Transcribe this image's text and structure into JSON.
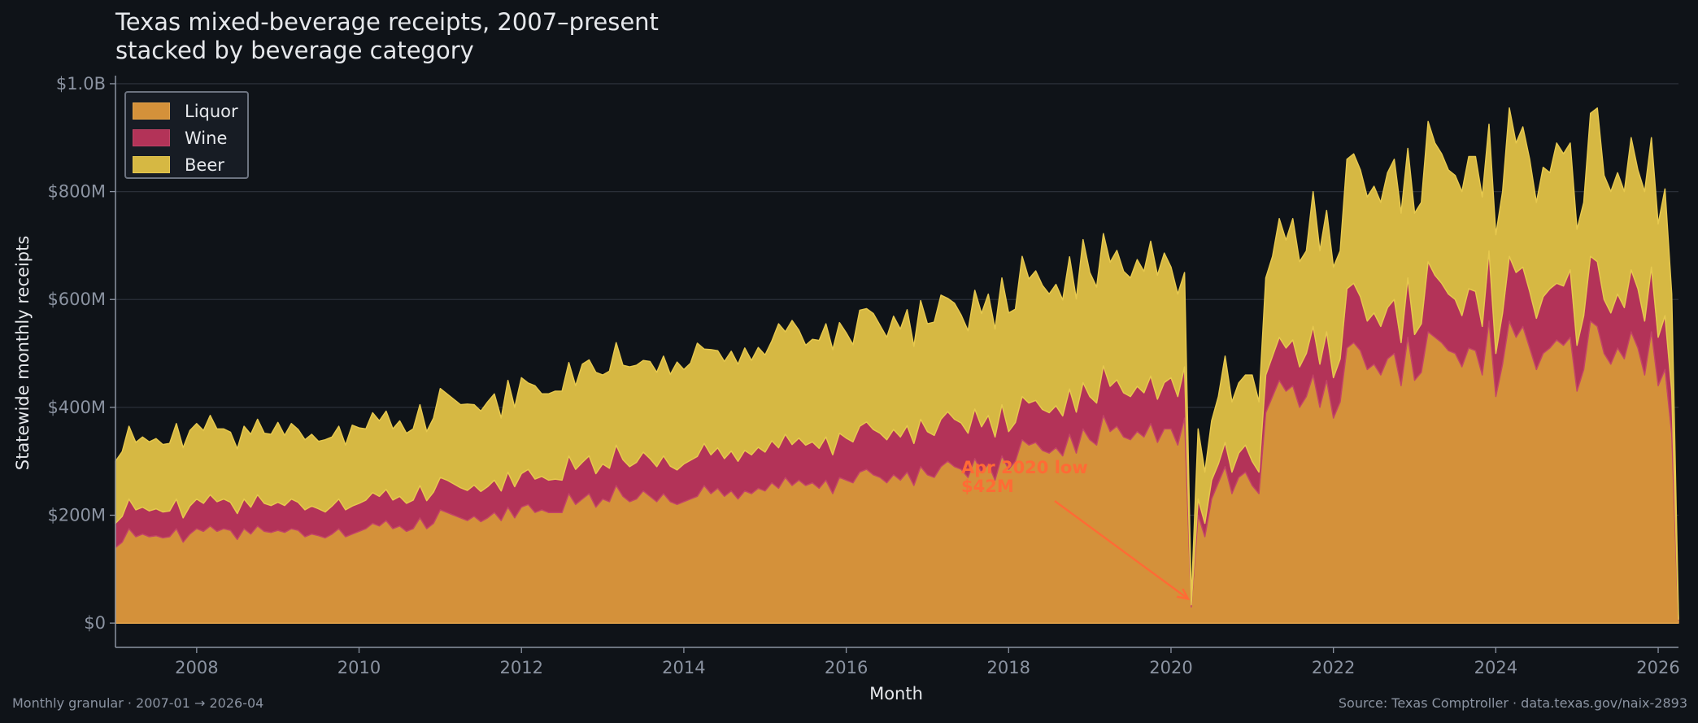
{
  "chart_data": {
    "type": "area",
    "stacked": true,
    "title": "Texas mixed-beverage receipts, 2007–present",
    "subtitle": "stacked by beverage category",
    "xlabel": "Month",
    "ylabel": "Statewide monthly receipts",
    "x_start": "2007-01",
    "x_end": "2026-04",
    "x_ticks": [
      "2008",
      "2010",
      "2012",
      "2014",
      "2016",
      "2018",
      "2020",
      "2022",
      "2024",
      "2026"
    ],
    "y_ticks": [
      0,
      200,
      400,
      600,
      800,
      1000
    ],
    "y_tick_labels": [
      "$0",
      "$200M",
      "$400M",
      "$600M",
      "$800M",
      "$1.0B"
    ],
    "y_unit": "$M",
    "ylim": [
      -45,
      1015
    ],
    "grid": "horizontal",
    "legend_placement": "top-left",
    "annotation": {
      "line1": "Apr 2020 low",
      "line2": "$42M",
      "x": "2020-04",
      "y": 42,
      "color": "#ff6b35"
    },
    "series": [
      {
        "name": "Liquor",
        "color": "#d4913a",
        "values": [
          140,
          150,
          175,
          160,
          165,
          160,
          162,
          158,
          160,
          175,
          150,
          165,
          175,
          170,
          180,
          170,
          175,
          172,
          155,
          175,
          165,
          180,
          170,
          168,
          172,
          168,
          175,
          172,
          160,
          165,
          162,
          158,
          165,
          175,
          160,
          165,
          170,
          175,
          185,
          180,
          190,
          175,
          180,
          170,
          175,
          195,
          175,
          185,
          210,
          205,
          200,
          195,
          190,
          198,
          188,
          195,
          205,
          190,
          215,
          195,
          215,
          220,
          205,
          210,
          205,
          205,
          205,
          240,
          220,
          230,
          240,
          215,
          230,
          225,
          255,
          235,
          225,
          230,
          245,
          235,
          225,
          240,
          225,
          220,
          225,
          230,
          235,
          255,
          240,
          250,
          235,
          245,
          230,
          245,
          240,
          250,
          245,
          260,
          250,
          270,
          255,
          265,
          255,
          260,
          250,
          265,
          240,
          270,
          265,
          260,
          280,
          285,
          275,
          270,
          260,
          275,
          265,
          280,
          255,
          290,
          275,
          270,
          290,
          300,
          290,
          285,
          270,
          305,
          280,
          295,
          265,
          310,
          285,
          300,
          340,
          330,
          335,
          320,
          315,
          325,
          310,
          350,
          315,
          360,
          340,
          330,
          385,
          355,
          365,
          345,
          340,
          355,
          345,
          370,
          335,
          360,
          360,
          330,
          380,
          30,
          200,
          160,
          230,
          260,
          290,
          240,
          270,
          280,
          255,
          240,
          390,
          420,
          450,
          430,
          440,
          400,
          420,
          460,
          400,
          450,
          380,
          410,
          510,
          520,
          505,
          470,
          480,
          460,
          490,
          500,
          440,
          530,
          450,
          465,
          540,
          530,
          520,
          505,
          500,
          475,
          510,
          505,
          460,
          560,
          420,
          480,
          560,
          530,
          550,
          510,
          470,
          500,
          510,
          525,
          515,
          530,
          430,
          470,
          560,
          550,
          500,
          480,
          510,
          490,
          540,
          510,
          460,
          540,
          440,
          470,
          350,
          6
        ]
      },
      {
        "name": "Wine",
        "color": "#b33358",
        "values": [
          45,
          48,
          55,
          50,
          50,
          48,
          50,
          48,
          48,
          55,
          45,
          52,
          55,
          52,
          58,
          55,
          55,
          52,
          48,
          55,
          50,
          58,
          52,
          50,
          52,
          50,
          55,
          52,
          50,
          52,
          50,
          48,
          52,
          55,
          50,
          52,
          52,
          53,
          57,
          55,
          58,
          53,
          55,
          52,
          53,
          60,
          52,
          58,
          60,
          60,
          58,
          56,
          56,
          58,
          56,
          58,
          60,
          55,
          65,
          58,
          62,
          65,
          62,
          62,
          60,
          62,
          60,
          70,
          65,
          68,
          70,
          62,
          65,
          62,
          75,
          68,
          65,
          68,
          72,
          70,
          65,
          70,
          66,
          64,
          70,
          72,
          74,
          78,
          72,
          75,
          70,
          74,
          70,
          75,
          72,
          76,
          72,
          78,
          75,
          80,
          76,
          78,
          75,
          76,
          74,
          80,
          72,
          82,
          78,
          76,
          85,
          88,
          84,
          82,
          80,
          84,
          80,
          86,
          78,
          88,
          80,
          78,
          88,
          92,
          88,
          86,
          82,
          92,
          84,
          90,
          80,
          95,
          70,
          72,
          80,
          78,
          78,
          76,
          75,
          78,
          74,
          84,
          76,
          86,
          80,
          78,
          92,
          84,
          86,
          82,
          80,
          84,
          82,
          88,
          80,
          86,
          95,
          90,
          95,
          4,
          30,
          25,
          35,
          35,
          45,
          40,
          45,
          50,
          45,
          40,
          70,
          75,
          80,
          80,
          85,
          75,
          80,
          90,
          80,
          90,
          75,
          80,
          110,
          110,
          100,
          90,
          95,
          90,
          95,
          100,
          80,
          110,
          85,
          90,
          130,
          115,
          110,
          105,
          100,
          95,
          110,
          110,
          90,
          130,
          80,
          95,
          120,
          120,
          110,
          105,
          95,
          105,
          110,
          105,
          110,
          125,
          85,
          100,
          120,
          120,
          100,
          95,
          100,
          95,
          115,
          110,
          100,
          120,
          90,
          100,
          80,
          1
        ]
      },
      {
        "name": "Beer",
        "color": "#d6b843",
        "values": [
          115,
          120,
          135,
          125,
          130,
          128,
          130,
          125,
          125,
          140,
          130,
          140,
          140,
          135,
          147,
          135,
          130,
          130,
          120,
          135,
          135,
          140,
          130,
          132,
          148,
          130,
          140,
          135,
          130,
          133,
          125,
          134,
          128,
          135,
          120,
          150,
          140,
          132,
          148,
          140,
          145,
          132,
          140,
          130,
          132,
          150,
          128,
          137,
          165,
          160,
          157,
          154,
          160,
          149,
          149,
          157,
          160,
          135,
          170,
          147,
          178,
          160,
          173,
          153,
          160,
          163,
          165,
          173,
          155,
          182,
          178,
          188,
          165,
          180,
          190,
          175,
          185,
          180,
          170,
          180,
          175,
          185,
          170,
          200,
          175,
          180,
          210,
          175,
          195,
          180,
          180,
          185,
          180,
          190,
          175,
          185,
          180,
          185,
          230,
          190,
          230,
          200,
          185,
          190,
          200,
          210,
          195,
          205,
          195,
          180,
          215,
          210,
          215,
          200,
          190,
          210,
          200,
          215,
          180,
          220,
          200,
          210,
          230,
          210,
          215,
          200,
          190,
          220,
          210,
          225,
          200,
          235,
          220,
          210,
          260,
          230,
          240,
          230,
          220,
          225,
          215,
          245,
          210,
          265,
          230,
          215,
          245,
          230,
          240,
          225,
          220,
          235,
          225,
          250,
          230,
          240,
          205,
          190,
          175,
          8,
          130,
          95,
          110,
          125,
          160,
          130,
          130,
          130,
          160,
          130,
          180,
          185,
          220,
          200,
          225,
          195,
          190,
          250,
          210,
          225,
          205,
          200,
          240,
          240,
          235,
          230,
          235,
          230,
          250,
          260,
          240,
          240,
          225,
          225,
          260,
          245,
          240,
          230,
          230,
          230,
          245,
          250,
          240,
          235,
          220,
          225,
          275,
          240,
          260,
          245,
          215,
          240,
          215,
          260,
          245,
          235,
          215,
          210,
          265,
          285,
          230,
          225,
          225,
          215,
          245,
          220,
          240,
          240,
          210,
          235,
          180,
          3
        ]
      }
    ]
  },
  "footer": {
    "left": "Monthly granular · 2007-01 → 2026-04",
    "right": "Source: Texas Comptroller · data.texas.gov/naix-2893"
  }
}
